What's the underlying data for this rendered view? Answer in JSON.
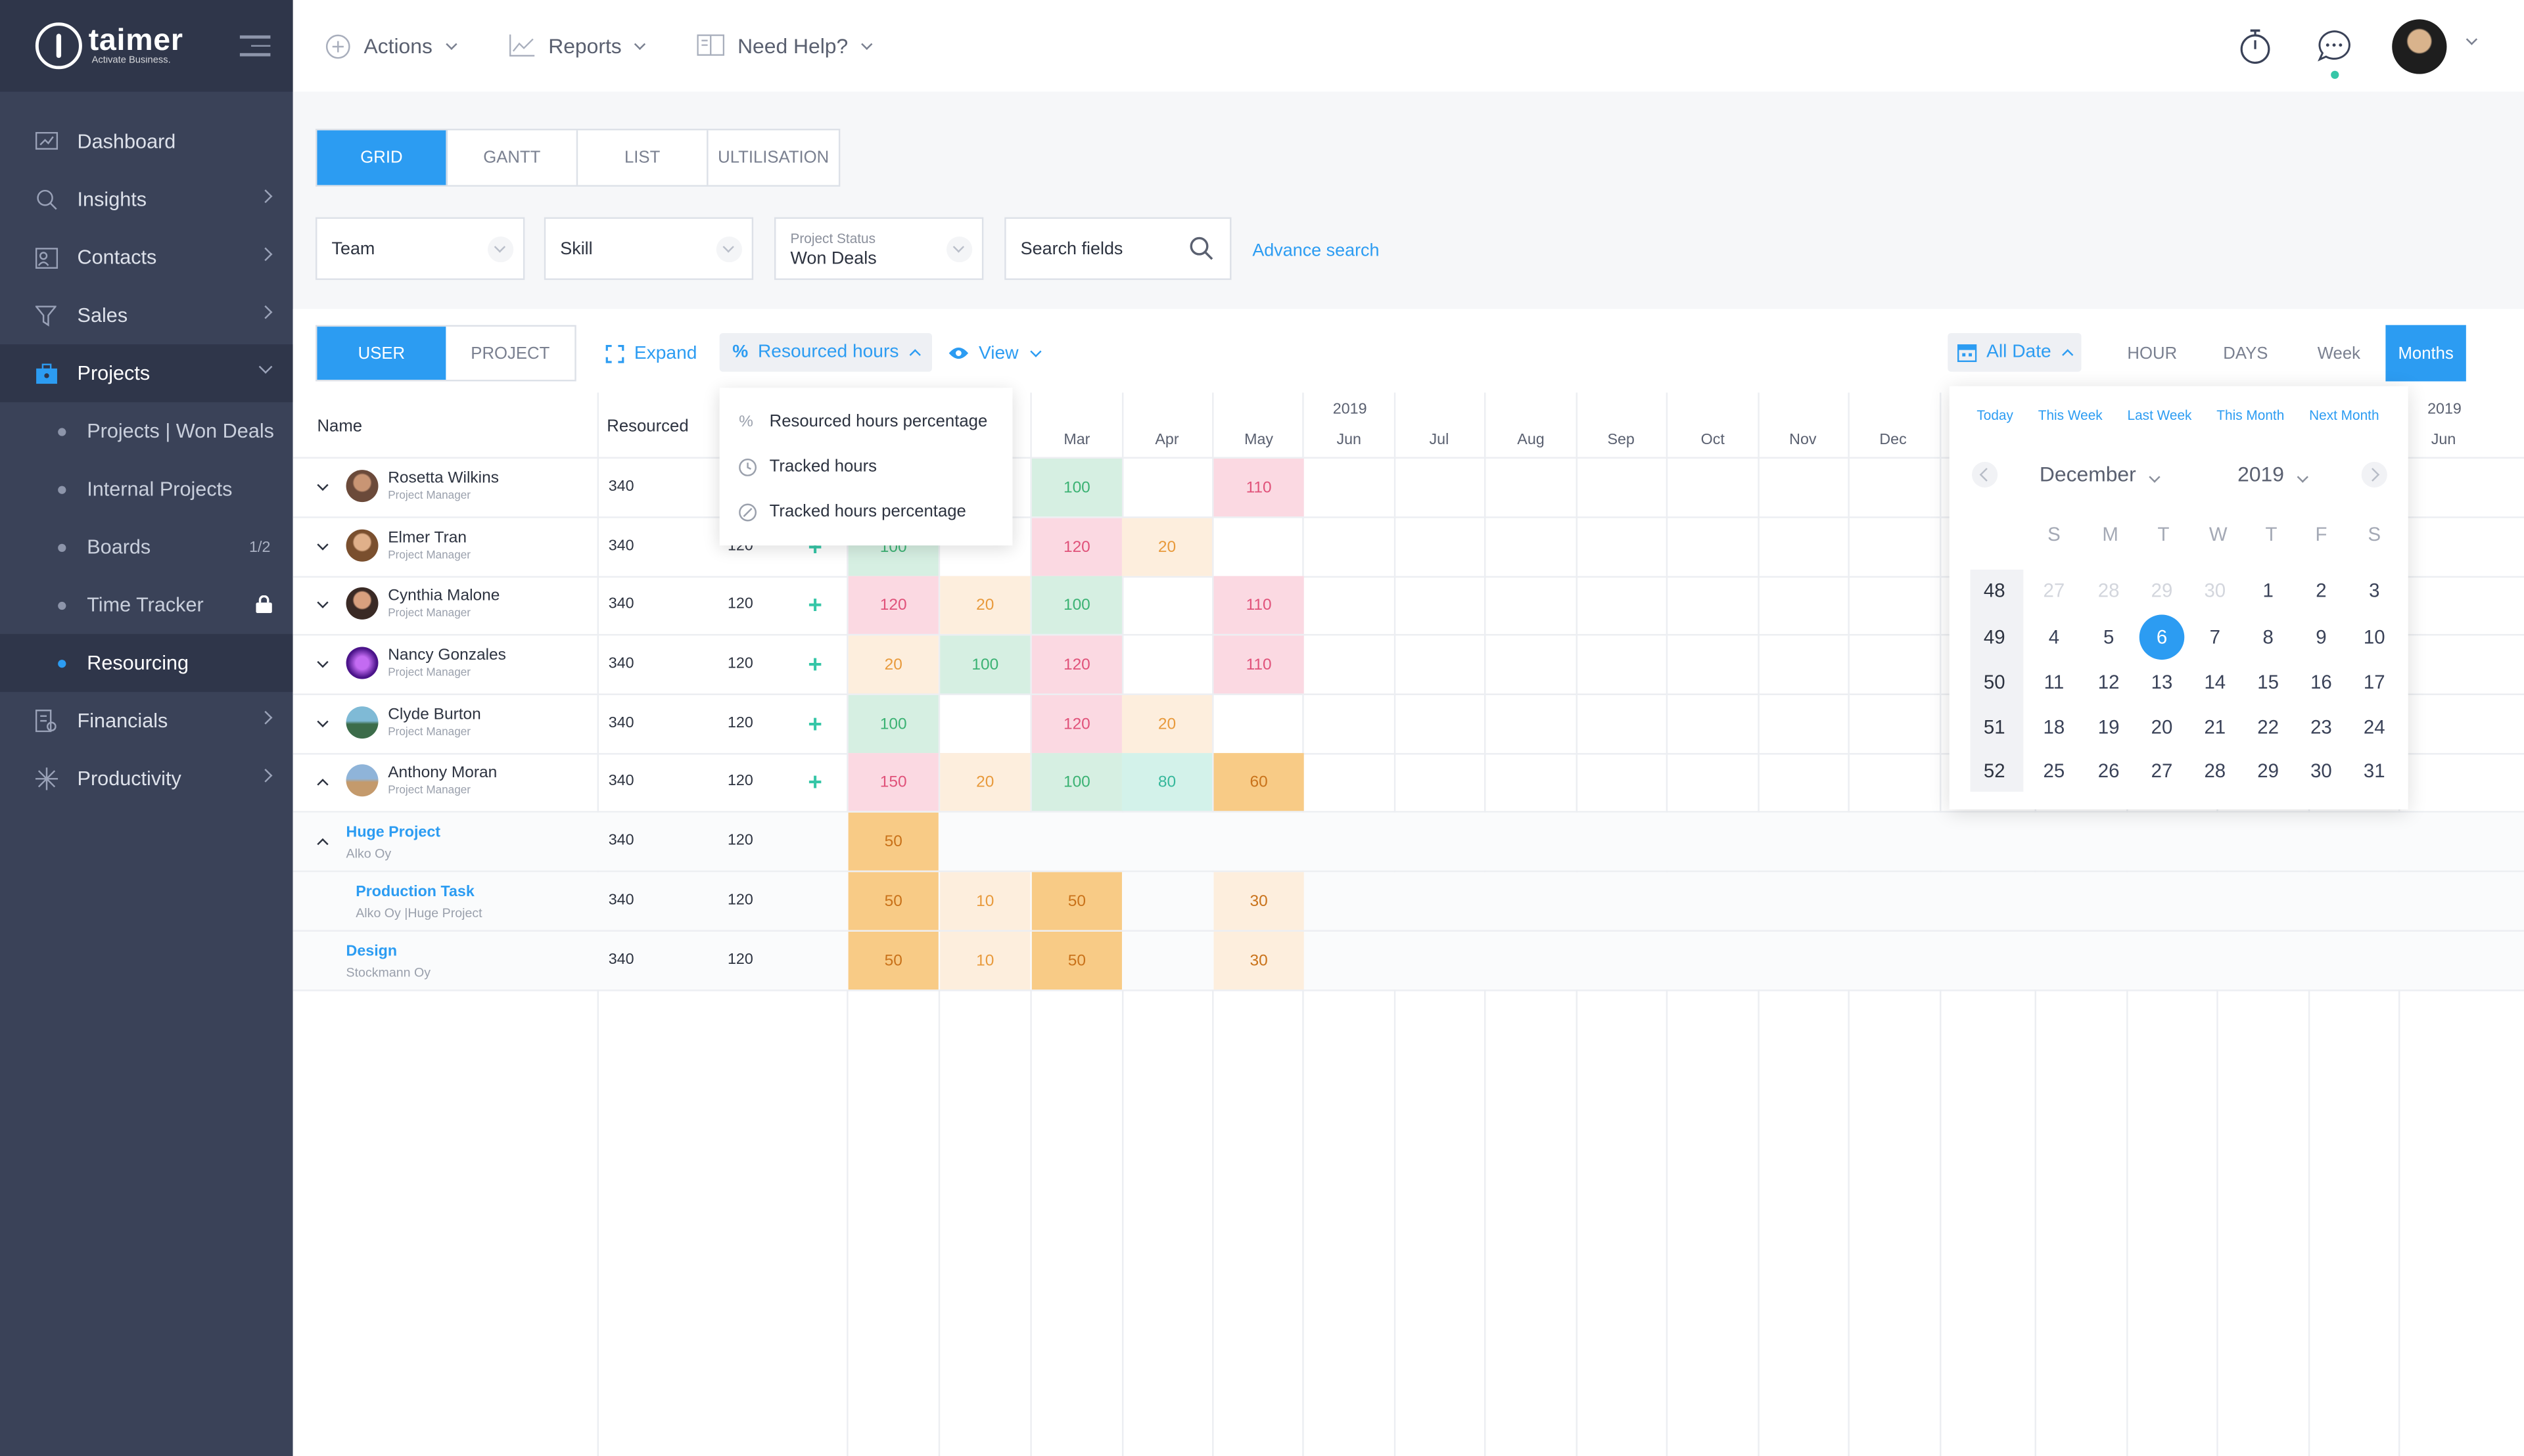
{
  "app": {
    "brand": "taimer",
    "tagline": "Activate Business."
  },
  "sidebar": {
    "items": [
      {
        "label": "Dashboard",
        "icon": "dashboard-icon"
      },
      {
        "label": "Insights",
        "icon": "insights-icon"
      },
      {
        "label": "Contacts",
        "icon": "contacts-icon"
      },
      {
        "label": "Sales",
        "icon": "filter-icon"
      },
      {
        "label": "Projects",
        "icon": "briefcase-icon"
      },
      {
        "label": "Financials",
        "icon": "financials-icon"
      },
      {
        "label": "Productivity",
        "icon": "productivity-icon"
      }
    ],
    "project_sub": [
      {
        "label": "Projects | Won Deals"
      },
      {
        "label": "Internal Projects"
      },
      {
        "label": "Boards",
        "count": "1/2"
      },
      {
        "label": "Time Tracker"
      },
      {
        "label": "Resourcing"
      }
    ]
  },
  "topbar": {
    "actions": "Actions",
    "reports": "Reports",
    "help": "Need Help?"
  },
  "view_tabs": [
    "GRID",
    "GANTT",
    "LIST",
    "ULTILISATION"
  ],
  "filters": {
    "team": "Team",
    "skill": "Skill",
    "project_status_label": "Project Status",
    "project_status_value": "Won Deals",
    "search_placeholder": "Search fields",
    "advance_search": "Advance search"
  },
  "toolbar": {
    "user": "USER",
    "project": "PROJECT",
    "expand": "Expand",
    "resourced_hours": "Resourced hours",
    "view": "View",
    "all_date": "All Date",
    "scales": [
      "HOUR",
      "DAYS",
      "Week",
      "Months"
    ]
  },
  "dropdown": [
    "Resourced hours percentage",
    "Tracked hours",
    "Tracked hours percentage"
  ],
  "grid": {
    "headers": {
      "name": "Name",
      "resourced": "Resourced"
    },
    "year": "2019",
    "year2": "2019",
    "months": [
      "Mar",
      "Apr",
      "May",
      "Jun",
      "Jul",
      "Aug",
      "Sep",
      "Oct",
      "Nov",
      "Dec"
    ],
    "month_right": "Jun",
    "rows": [
      {
        "name": "Rosetta Wilkins",
        "role": "Project Manager",
        "resourced": "340",
        "tracked": "",
        "cells": [
          "",
          "",
          "100",
          "",
          "110"
        ]
      },
      {
        "name": "Elmer Tran",
        "role": "Project Manager",
        "resourced": "340",
        "tracked": "120",
        "cells": [
          "100",
          "",
          "120",
          "20",
          ""
        ]
      },
      {
        "name": "Cynthia Malone",
        "role": "Project Manager",
        "resourced": "340",
        "tracked": "120",
        "cells": [
          "120",
          "20",
          "100",
          "",
          "110"
        ]
      },
      {
        "name": "Nancy Gonzales",
        "role": "Project Manager",
        "resourced": "340",
        "tracked": "120",
        "cells": [
          "20",
          "100",
          "120",
          "",
          "110"
        ]
      },
      {
        "name": "Clyde Burton",
        "role": "Project Manager",
        "resourced": "340",
        "tracked": "120",
        "cells": [
          "100",
          "",
          "120",
          "20",
          ""
        ]
      },
      {
        "name": "Anthony Moran",
        "role": "Project Manager",
        "resourced": "340",
        "tracked": "120",
        "cells": [
          "150",
          "20",
          "100",
          "80",
          "60"
        ]
      }
    ],
    "projects": [
      {
        "name": "Huge Project",
        "sub": "Alko Oy",
        "resourced": "340",
        "tracked": "120",
        "cells": [
          "50",
          "",
          "",
          "",
          ""
        ]
      },
      {
        "name": "Production Task",
        "sub": "Alko Oy |Huge Project",
        "resourced": "340",
        "tracked": "120",
        "cells": [
          "50",
          "10",
          "50",
          "",
          "30"
        ]
      },
      {
        "name": "Design",
        "sub": "Stockmann Oy",
        "resourced": "340",
        "tracked": "120",
        "cells": [
          "50",
          "10",
          "50",
          "",
          "30"
        ]
      }
    ]
  },
  "calendar": {
    "quick": [
      "Today",
      "This Week",
      "Last Week",
      "This Month",
      "Next Month"
    ],
    "month": "December",
    "year": "2019",
    "dow": [
      "S",
      "M",
      "T",
      "W",
      "T",
      "F",
      "S"
    ],
    "weeks": [
      {
        "wk": "48",
        "days": [
          "27",
          "28",
          "29",
          "30",
          "1",
          "2",
          "3"
        ]
      },
      {
        "wk": "49",
        "days": [
          "4",
          "5",
          "6",
          "7",
          "8",
          "9",
          "10"
        ]
      },
      {
        "wk": "50",
        "days": [
          "11",
          "12",
          "13",
          "14",
          "15",
          "16",
          "17"
        ]
      },
      {
        "wk": "51",
        "days": [
          "18",
          "19",
          "20",
          "21",
          "22",
          "23",
          "24"
        ]
      },
      {
        "wk": "52",
        "days": [
          "25",
          "26",
          "27",
          "28",
          "29",
          "30",
          "31"
        ]
      }
    ],
    "selected": "6"
  },
  "colors": {
    "accent": "#2c9cf2",
    "sidebar": "#3a4258",
    "green_cell": "#d6efe2",
    "pink_cell": "#fbd9e2",
    "peach_cell": "#fdeedd",
    "orange_cell": "#f8cb86",
    "teal_plus": "#36c6a7"
  }
}
